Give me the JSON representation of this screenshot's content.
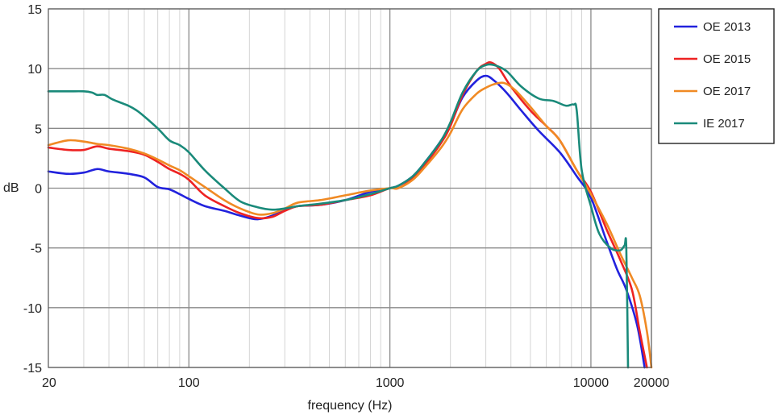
{
  "chart_data": {
    "type": "line",
    "xscale": "log",
    "xlabel": "frequency (Hz)",
    "ylabel": "dB",
    "xlim": [
      20,
      20000
    ],
    "ylim": [
      -15,
      15
    ],
    "xticks": [
      20,
      100,
      1000,
      10000,
      20000
    ],
    "xtick_labels": [
      "20",
      "100",
      "1000",
      "10000",
      "20000"
    ],
    "yticks": [
      15,
      10,
      5,
      0,
      -5,
      -10,
      -15
    ],
    "ytick_labels": [
      "15",
      "10",
      "5",
      "0",
      "-5",
      "-10",
      "-15"
    ],
    "grid": "major and minor",
    "legend_position": "right",
    "series": [
      {
        "name": "OE 2013",
        "color": "#2222dd",
        "points": [
          [
            20,
            1.4
          ],
          [
            25,
            1.2
          ],
          [
            30,
            1.3
          ],
          [
            35,
            1.6
          ],
          [
            40,
            1.4
          ],
          [
            50,
            1.2
          ],
          [
            60,
            0.9
          ],
          [
            70,
            0.1
          ],
          [
            80,
            -0.1
          ],
          [
            90,
            -0.5
          ],
          [
            100,
            -0.9
          ],
          [
            120,
            -1.5
          ],
          [
            150,
            -1.9
          ],
          [
            180,
            -2.3
          ],
          [
            220,
            -2.6
          ],
          [
            270,
            -2.2
          ],
          [
            300,
            -1.8
          ],
          [
            350,
            -1.5
          ],
          [
            450,
            -1.4
          ],
          [
            600,
            -1.0
          ],
          [
            800,
            -0.3
          ],
          [
            1000,
            0.0
          ],
          [
            1100,
            0.2
          ],
          [
            1300,
            1.0
          ],
          [
            1500,
            2.2
          ],
          [
            1800,
            4.0
          ],
          [
            2000,
            5.3
          ],
          [
            2300,
            7.6
          ],
          [
            2700,
            9.0
          ],
          [
            3000,
            9.4
          ],
          [
            3300,
            9.0
          ],
          [
            3800,
            8.0
          ],
          [
            4500,
            6.5
          ],
          [
            5500,
            4.8
          ],
          [
            7000,
            3.0
          ],
          [
            8500,
            1.0
          ],
          [
            10000,
            -0.8
          ],
          [
            12000,
            -4.5
          ],
          [
            13500,
            -6.8
          ],
          [
            15000,
            -8.5
          ],
          [
            17000,
            -11.5
          ],
          [
            18500,
            -15.0
          ]
        ]
      },
      {
        "name": "OE 2015",
        "color": "#ee2222",
        "points": [
          [
            20,
            3.4
          ],
          [
            25,
            3.2
          ],
          [
            30,
            3.2
          ],
          [
            35,
            3.5
          ],
          [
            40,
            3.3
          ],
          [
            50,
            3.1
          ],
          [
            60,
            2.8
          ],
          [
            70,
            2.2
          ],
          [
            80,
            1.6
          ],
          [
            90,
            1.2
          ],
          [
            100,
            0.7
          ],
          [
            120,
            -0.6
          ],
          [
            150,
            -1.5
          ],
          [
            180,
            -2.1
          ],
          [
            220,
            -2.5
          ],
          [
            260,
            -2.4
          ],
          [
            300,
            -1.9
          ],
          [
            350,
            -1.5
          ],
          [
            450,
            -1.4
          ],
          [
            600,
            -1.0
          ],
          [
            800,
            -0.6
          ],
          [
            1000,
            0.0
          ],
          [
            1100,
            0.0
          ],
          [
            1300,
            0.8
          ],
          [
            1500,
            2.0
          ],
          [
            1800,
            3.8
          ],
          [
            2000,
            5.2
          ],
          [
            2300,
            7.8
          ],
          [
            2700,
            9.8
          ],
          [
            3000,
            10.4
          ],
          [
            3200,
            10.5
          ],
          [
            3500,
            10.0
          ],
          [
            4000,
            8.5
          ],
          [
            5000,
            6.5
          ],
          [
            6000,
            5.2
          ],
          [
            7000,
            4.0
          ],
          [
            8500,
            1.5
          ],
          [
            10000,
            -0.3
          ],
          [
            12000,
            -3.5
          ],
          [
            14000,
            -6.0
          ],
          [
            16000,
            -8.5
          ],
          [
            17500,
            -12.0
          ],
          [
            19000,
            -15.0
          ]
        ]
      },
      {
        "name": "OE 2017",
        "color": "#f08a24",
        "points": [
          [
            20,
            3.6
          ],
          [
            25,
            4.0
          ],
          [
            30,
            3.9
          ],
          [
            35,
            3.7
          ],
          [
            40,
            3.6
          ],
          [
            50,
            3.3
          ],
          [
            60,
            2.9
          ],
          [
            70,
            2.4
          ],
          [
            80,
            1.9
          ],
          [
            90,
            1.5
          ],
          [
            100,
            1.0
          ],
          [
            120,
            0.1
          ],
          [
            150,
            -1.0
          ],
          [
            180,
            -1.7
          ],
          [
            220,
            -2.2
          ],
          [
            260,
            -2.1
          ],
          [
            300,
            -1.7
          ],
          [
            350,
            -1.2
          ],
          [
            450,
            -1.0
          ],
          [
            600,
            -0.6
          ],
          [
            800,
            -0.2
          ],
          [
            1000,
            0.0
          ],
          [
            1100,
            0.0
          ],
          [
            1300,
            0.7
          ],
          [
            1500,
            1.8
          ],
          [
            1800,
            3.4
          ],
          [
            2000,
            4.6
          ],
          [
            2300,
            6.6
          ],
          [
            2700,
            7.9
          ],
          [
            3000,
            8.4
          ],
          [
            3300,
            8.7
          ],
          [
            3700,
            8.8
          ],
          [
            4200,
            8.2
          ],
          [
            5000,
            6.8
          ],
          [
            6000,
            5.2
          ],
          [
            7000,
            4.0
          ],
          [
            8500,
            1.5
          ],
          [
            10000,
            -0.5
          ],
          [
            12000,
            -3.0
          ],
          [
            14000,
            -5.5
          ],
          [
            16000,
            -7.5
          ],
          [
            17500,
            -9.0
          ],
          [
            19000,
            -12.0
          ],
          [
            20000,
            -15.0
          ]
        ]
      },
      {
        "name": "IE 2017",
        "color": "#1a8a7a",
        "points": [
          [
            20,
            8.1
          ],
          [
            25,
            8.1
          ],
          [
            30,
            8.1
          ],
          [
            33,
            8.0
          ],
          [
            35,
            7.8
          ],
          [
            38,
            7.8
          ],
          [
            42,
            7.4
          ],
          [
            50,
            6.9
          ],
          [
            55,
            6.5
          ],
          [
            60,
            6.0
          ],
          [
            70,
            5.0
          ],
          [
            80,
            4.0
          ],
          [
            90,
            3.6
          ],
          [
            100,
            3.0
          ],
          [
            120,
            1.5
          ],
          [
            150,
            0.0
          ],
          [
            180,
            -1.1
          ],
          [
            220,
            -1.6
          ],
          [
            260,
            -1.8
          ],
          [
            300,
            -1.7
          ],
          [
            350,
            -1.5
          ],
          [
            450,
            -1.3
          ],
          [
            600,
            -1.0
          ],
          [
            800,
            -0.5
          ],
          [
            1000,
            0.0
          ],
          [
            1100,
            0.2
          ],
          [
            1300,
            1.0
          ],
          [
            1500,
            2.2
          ],
          [
            1800,
            4.0
          ],
          [
            2000,
            5.5
          ],
          [
            2300,
            8.0
          ],
          [
            2700,
            9.8
          ],
          [
            3000,
            10.3
          ],
          [
            3300,
            10.3
          ],
          [
            3800,
            9.8
          ],
          [
            4500,
            8.5
          ],
          [
            5500,
            7.5
          ],
          [
            6500,
            7.3
          ],
          [
            7500,
            6.9
          ],
          [
            8200,
            7.0
          ],
          [
            8500,
            6.5
          ],
          [
            9000,
            1.5
          ],
          [
            10000,
            -1.5
          ],
          [
            11000,
            -3.8
          ],
          [
            12500,
            -5.0
          ],
          [
            14000,
            -5.2
          ],
          [
            14700,
            -4.8
          ],
          [
            15000,
            -5.0
          ],
          [
            15300,
            -15.0
          ]
        ]
      }
    ]
  }
}
